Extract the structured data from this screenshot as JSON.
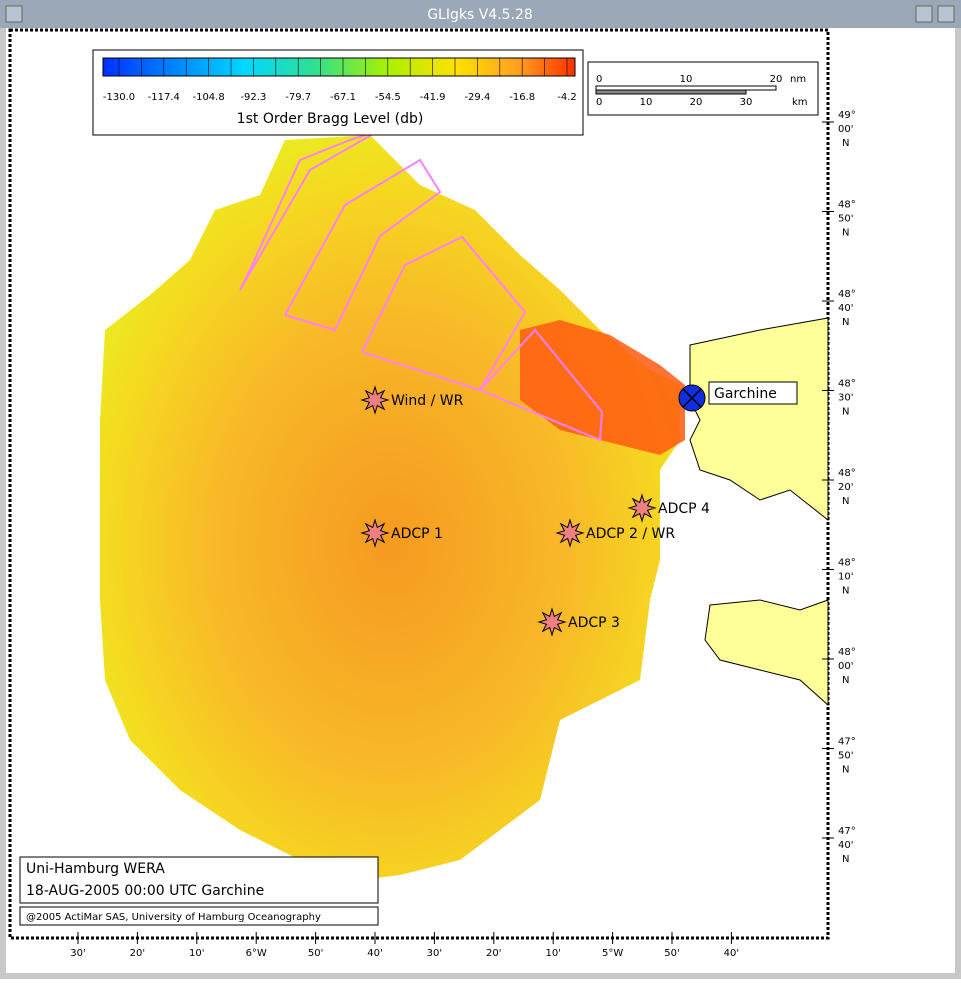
{
  "window": {
    "title": "GLIgks V4.5.28"
  },
  "colorbar": {
    "title": "1st Order Bragg Level (db)",
    "labels": [
      "-130.0",
      "-117.4",
      "-104.8",
      "-92.3",
      "-79.7",
      "-67.1",
      "-54.5",
      "-41.9",
      "-29.4",
      "-16.8",
      "-4.2"
    ]
  },
  "scale_bar": {
    "nm_labels": [
      "0",
      "10",
      "20"
    ],
    "nm_unit": "nm",
    "km_labels": [
      "0",
      "10",
      "20",
      "30"
    ],
    "km_unit": "km"
  },
  "lat_labels": [
    {
      "deg": "49°",
      "min": "00'",
      "hem": "N"
    },
    {
      "deg": "48°",
      "min": "50'",
      "hem": "N"
    },
    {
      "deg": "48°",
      "min": "40'",
      "hem": "N"
    },
    {
      "deg": "48°",
      "min": "30'",
      "hem": "N"
    },
    {
      "deg": "48°",
      "min": "20'",
      "hem": "N"
    },
    {
      "deg": "48°",
      "min": "10'",
      "hem": "N"
    },
    {
      "deg": "48°",
      "min": "00'",
      "hem": "N"
    },
    {
      "deg": "47°",
      "min": "50'",
      "hem": "N"
    },
    {
      "deg": "47°",
      "min": "40'",
      "hem": "N"
    }
  ],
  "lon_labels": [
    "30'",
    "20'",
    "10'",
    "6°W",
    "50'",
    "40'",
    "30'",
    "20'",
    "10'",
    "5°W",
    "50'",
    "40'"
  ],
  "stations": [
    {
      "label": "Wind / WR"
    },
    {
      "label": "ADCP 1"
    },
    {
      "label": "ADCP 2 / WR"
    },
    {
      "label": "ADCP 3"
    },
    {
      "label": "ADCP 4"
    }
  ],
  "radar_site": {
    "label": "Garchine"
  },
  "info": {
    "line1": "Uni-Hamburg WERA",
    "line2": "18-AUG-2005 00:00 UTC  Garchine",
    "copyright": "@2005 ActiMar SAS, University of Hamburg Oceanography"
  }
}
